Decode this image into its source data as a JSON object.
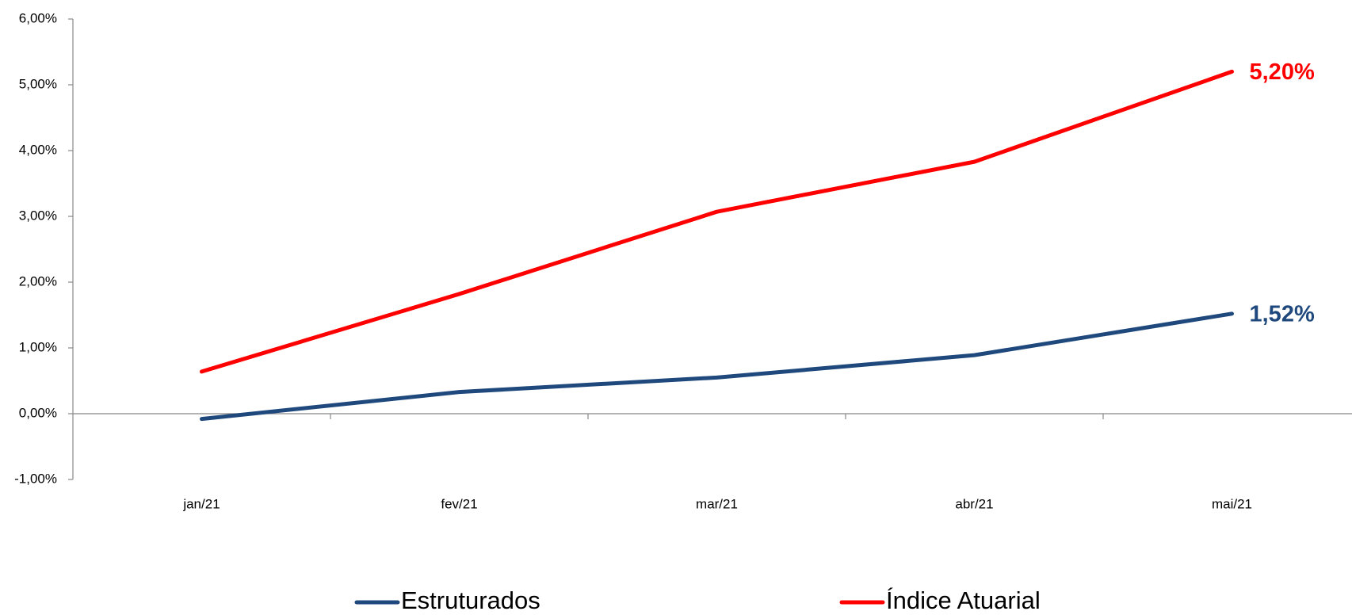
{
  "chart_data": {
    "type": "line",
    "categories": [
      "jan/21",
      "fev/21",
      "mar/21",
      "abr/21",
      "mai/21"
    ],
    "series": [
      {
        "name": "Estruturados",
        "color": "#1f497d",
        "values": [
          -0.08,
          0.33,
          0.55,
          0.89,
          1.52
        ],
        "value_labels": [
          null,
          null,
          null,
          null,
          "1,52%"
        ]
      },
      {
        "name": "Índice Atuarial",
        "color": "#ff0000",
        "values": [
          0.64,
          1.82,
          3.07,
          3.83,
          5.2
        ],
        "value_labels": [
          null,
          null,
          null,
          null,
          "5,20%"
        ]
      }
    ],
    "ylim": [
      -1,
      6
    ],
    "yticks": [
      {
        "value": -1,
        "label": "-1,00%"
      },
      {
        "value": 0,
        "label": "0,00%"
      },
      {
        "value": 1,
        "label": "1,00%"
      },
      {
        "value": 2,
        "label": "2,00%"
      },
      {
        "value": 3,
        "label": "3,00%"
      },
      {
        "value": 4,
        "label": "4,00%"
      },
      {
        "value": 5,
        "label": "5,00%"
      },
      {
        "value": 6,
        "label": "6,00%"
      }
    ],
    "grid": false,
    "legend": "bottom"
  }
}
